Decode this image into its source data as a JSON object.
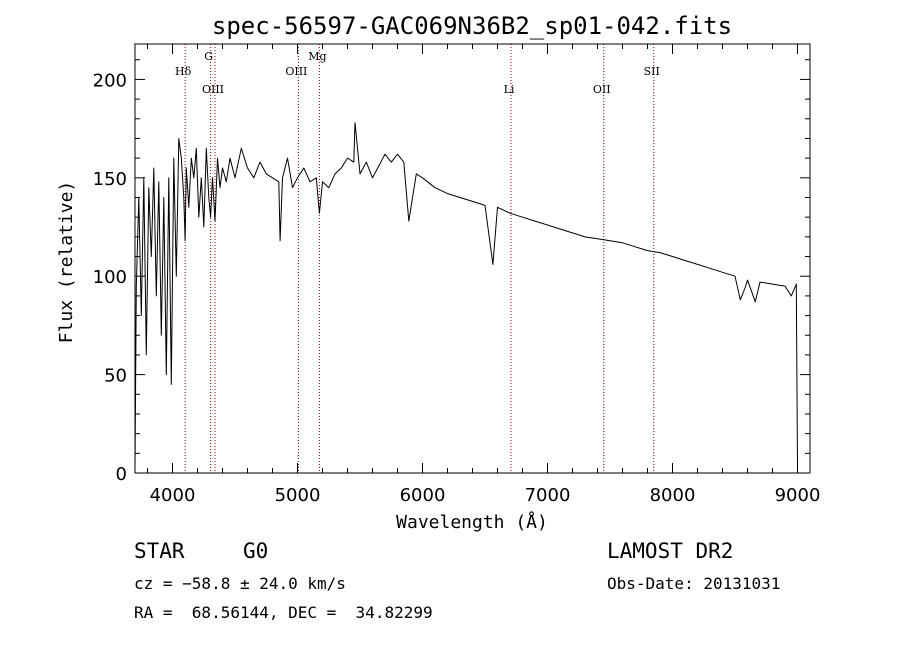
{
  "chart_data": {
    "type": "line",
    "title": "spec-56597-GAC069N36B2_sp01-042.fits",
    "xlabel": "Wavelength (Å)",
    "ylabel": "Flux (relative)",
    "xlim": [
      3700,
      9100
    ],
    "ylim": [
      0,
      218
    ],
    "x_ticks": [
      "4000",
      "5000",
      "6000",
      "7000",
      "8000",
      "9000"
    ],
    "y_ticks": [
      "0",
      "50",
      "100",
      "150",
      "200"
    ],
    "grid": false,
    "legend": "none",
    "line_color": "#000000",
    "marker_color": "#8b0000",
    "series": [
      {
        "x": [
          3700,
          3710,
          3730,
          3750,
          3770,
          3790,
          3810,
          3830,
          3850,
          3870,
          3890,
          3910,
          3930,
          3950,
          3970,
          3990,
          4010,
          4030,
          4050,
          4070,
          4090,
          4101,
          4110,
          4130,
          4150,
          4170,
          4190,
          4210,
          4230,
          4250,
          4270,
          4290,
          4305,
          4320,
          4340,
          4360,
          4380,
          4400,
          4430,
          4460,
          4500,
          4550,
          4600,
          4650,
          4700,
          4750,
          4800,
          4850,
          4861,
          4880,
          4920,
          4960,
          5000,
          5050,
          5100,
          5150,
          5175,
          5200,
          5250,
          5300,
          5350,
          5400,
          5450,
          5460,
          5500,
          5550,
          5600,
          5650,
          5700,
          5750,
          5800,
          5850,
          5890,
          5950,
          6000,
          6100,
          6200,
          6300,
          6400,
          6500,
          6563,
          6600,
          6700,
          6800,
          6900,
          7000,
          7100,
          7200,
          7300,
          7400,
          7500,
          7600,
          7700,
          7800,
          7900,
          8000,
          8100,
          8200,
          8300,
          8400,
          8500,
          8542,
          8580,
          8600,
          8662,
          8700,
          8800,
          8900,
          8950,
          8990,
          9000
        ],
        "y": [
          2,
          95,
          140,
          80,
          150,
          60,
          145,
          110,
          155,
          90,
          148,
          70,
          140,
          50,
          150,
          45,
          160,
          100,
          170,
          160,
          140,
          118,
          155,
          135,
          160,
          150,
          165,
          130,
          150,
          125,
          165,
          140,
          130,
          150,
          128,
          160,
          145,
          155,
          148,
          160,
          150,
          165,
          155,
          150,
          158,
          152,
          150,
          148,
          118,
          150,
          160,
          145,
          150,
          155,
          148,
          150,
          132,
          148,
          145,
          152,
          155,
          160,
          158,
          178,
          152,
          158,
          150,
          156,
          162,
          158,
          162,
          158,
          128,
          152,
          150,
          145,
          142,
          140,
          138,
          136,
          106,
          135,
          132,
          130,
          128,
          126,
          124,
          122,
          120,
          119,
          118,
          117,
          115,
          113,
          112,
          110,
          108,
          106,
          104,
          102,
          100,
          88,
          94,
          98,
          87,
          97,
          96,
          95,
          90,
          96,
          2
        ]
      }
    ],
    "line_markers": [
      {
        "label": "Hδ",
        "x": 4101
      },
      {
        "label": "OIII",
        "x": 4340
      },
      {
        "label": "G",
        "x": 4305
      },
      {
        "label": "OIII",
        "x": 5007
      },
      {
        "label": "Mg",
        "x": 5175
      },
      {
        "label": "Li",
        "x": 6708
      },
      {
        "label": "OII",
        "x": 7450
      },
      {
        "label": "SII",
        "x": 7850
      }
    ]
  },
  "info": {
    "object_type": "STAR",
    "subclass": "G0",
    "survey": "LAMOST DR2",
    "cz_line": "cz = −58.8 ± 24.0 km/s",
    "obs_date_line": "Obs-Date: 20131031",
    "coords_line": "RA =  68.56144, DEC =  34.82299"
  }
}
